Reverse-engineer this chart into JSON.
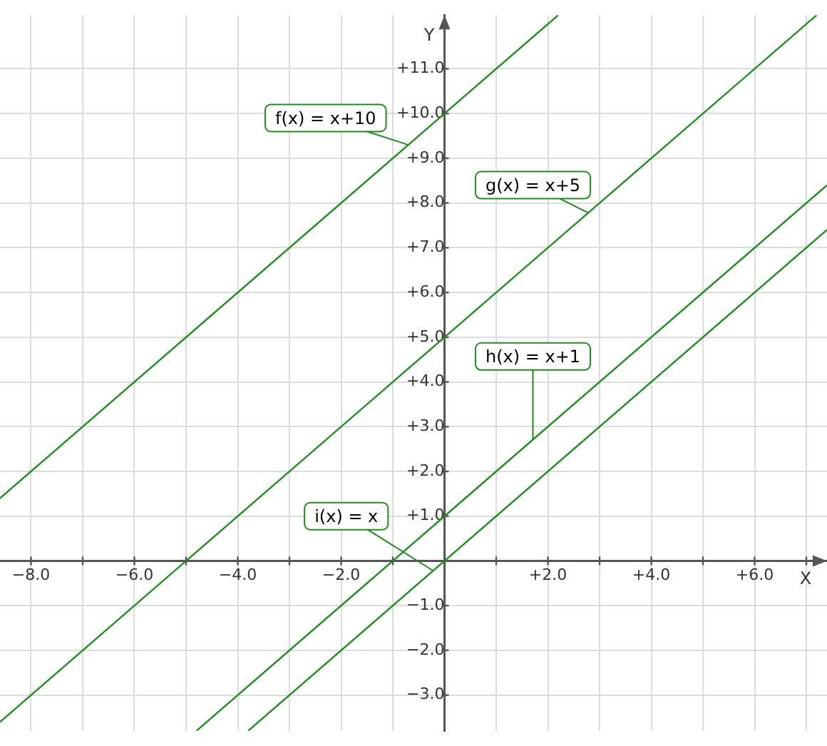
{
  "chart_data": {
    "type": "line",
    "xlabel": "X",
    "ylabel": "Y",
    "legend": false,
    "grid": true,
    "marker": "none",
    "line_style": "solid",
    "xlim": [
      -8.6,
      7.4
    ],
    "ylim": [
      -3.8,
      12.2
    ],
    "xticks": [
      {
        "value": -8,
        "label": "−8.0"
      },
      {
        "value": -7,
        "label": null
      },
      {
        "value": -6,
        "label": "−6.0"
      },
      {
        "value": -5,
        "label": null
      },
      {
        "value": -4,
        "label": "−4.0"
      },
      {
        "value": -3,
        "label": null
      },
      {
        "value": -2,
        "label": "−2.0"
      },
      {
        "value": -1,
        "label": null
      },
      {
        "value": 1,
        "label": null
      },
      {
        "value": 2,
        "label": "+2.0"
      },
      {
        "value": 3,
        "label": null
      },
      {
        "value": 4,
        "label": "+4.0"
      },
      {
        "value": 5,
        "label": null
      },
      {
        "value": 6,
        "label": "+6.0"
      },
      {
        "value": 7,
        "label": null
      }
    ],
    "yticks": [
      {
        "value": -3,
        "label": "−3.0"
      },
      {
        "value": -2,
        "label": "−2.0"
      },
      {
        "value": -1,
        "label": "−1.0"
      },
      {
        "value": 1,
        "label": "+1.0"
      },
      {
        "value": 2,
        "label": "+2.0"
      },
      {
        "value": 3,
        "label": "+3.0"
      },
      {
        "value": 4,
        "label": "+4.0"
      },
      {
        "value": 5,
        "label": "+5.0"
      },
      {
        "value": 6,
        "label": "+6.0"
      },
      {
        "value": 7,
        "label": "+7.0"
      },
      {
        "value": 8,
        "label": "+8.0"
      },
      {
        "value": 9,
        "label": "+9.0"
      },
      {
        "value": 10,
        "label": "+10.0"
      },
      {
        "value": 11,
        "label": "+11.0"
      }
    ],
    "series": [
      {
        "name": "f(x) = x+10",
        "color": "#228b22",
        "x": [
          -8.6,
          0,
          2.2
        ],
        "values": [
          1.4,
          10,
          12.2
        ]
      },
      {
        "name": "g(x) = x+5",
        "color": "#228b22",
        "x": [
          -8.6,
          0,
          7.2
        ],
        "values": [
          -3.6,
          5,
          12.2
        ]
      },
      {
        "name": "h(x) = x+1",
        "color": "#228b22",
        "x": [
          -4.8,
          0,
          7.4
        ],
        "values": [
          -3.8,
          1,
          8.4
        ]
      },
      {
        "name": "i(x) = x",
        "color": "#228b22",
        "x": [
          -3.8,
          0,
          7.4
        ],
        "values": [
          -3.8,
          0,
          7.4
        ]
      }
    ]
  }
}
